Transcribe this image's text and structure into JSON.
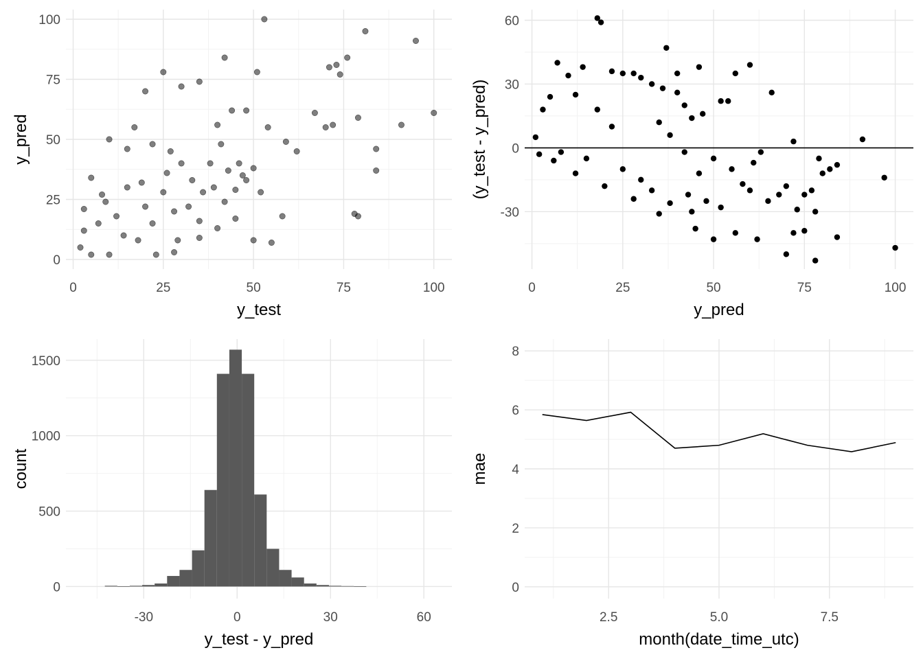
{
  "chart_data": [
    {
      "type": "scatter",
      "xlabel": "y_test",
      "ylabel": "y_pred",
      "xlim": [
        -2,
        105
      ],
      "ylim": [
        -4,
        104
      ],
      "xticks": [
        0,
        25,
        50,
        75,
        100
      ],
      "xtick_labels": [
        "0",
        "25",
        "50",
        "75",
        "100"
      ],
      "yticks": [
        0,
        25,
        50,
        75,
        100
      ],
      "ytick_labels": [
        "0",
        "25",
        "50",
        "75",
        "100"
      ],
      "grid": true,
      "point_color": "#000000",
      "point_opacity": 0.5,
      "points": [
        [
          53,
          100
        ],
        [
          95,
          91
        ],
        [
          81,
          95
        ],
        [
          76,
          84
        ],
        [
          42,
          84
        ],
        [
          73,
          81
        ],
        [
          71,
          80
        ],
        [
          51,
          78
        ],
        [
          25,
          78
        ],
        [
          74,
          77
        ],
        [
          79,
          59
        ],
        [
          91,
          56
        ],
        [
          100,
          61
        ],
        [
          84,
          46
        ],
        [
          84,
          37
        ],
        [
          78,
          19
        ],
        [
          79,
          18
        ],
        [
          67,
          61
        ],
        [
          70,
          55
        ],
        [
          72,
          56
        ],
        [
          62,
          45
        ],
        [
          59,
          49
        ],
        [
          54,
          55
        ],
        [
          48,
          62
        ],
        [
          44,
          62
        ],
        [
          40,
          56
        ],
        [
          30,
          72
        ],
        [
          35,
          74
        ],
        [
          20,
          70
        ],
        [
          41,
          48
        ],
        [
          46,
          40
        ],
        [
          38,
          40
        ],
        [
          22,
          48
        ],
        [
          27,
          45
        ],
        [
          15,
          46
        ],
        [
          10,
          50
        ],
        [
          17,
          55
        ],
        [
          5,
          34
        ],
        [
          3,
          21
        ],
        [
          48,
          33
        ],
        [
          47,
          35
        ],
        [
          50,
          38
        ],
        [
          52,
          28
        ],
        [
          58,
          18
        ],
        [
          45,
          17
        ],
        [
          50,
          8
        ],
        [
          55,
          7
        ],
        [
          40,
          13
        ],
        [
          35,
          16
        ],
        [
          29,
          8
        ],
        [
          28,
          3
        ],
        [
          23,
          2
        ],
        [
          10,
          2
        ],
        [
          5,
          2
        ],
        [
          2,
          5
        ],
        [
          3,
          12
        ],
        [
          8,
          27
        ],
        [
          30,
          40
        ],
        [
          26,
          36
        ],
        [
          33,
          33
        ],
        [
          36,
          28
        ],
        [
          32,
          22
        ],
        [
          39,
          30
        ],
        [
          43,
          37
        ],
        [
          20,
          22
        ],
        [
          19,
          32
        ],
        [
          14,
          10
        ],
        [
          12,
          18
        ],
        [
          25,
          28
        ],
        [
          22,
          15
        ],
        [
          18,
          8
        ],
        [
          7,
          15
        ],
        [
          9,
          24
        ],
        [
          15,
          30
        ],
        [
          28,
          20
        ],
        [
          35,
          9
        ],
        [
          42,
          24
        ],
        [
          45,
          29
        ]
      ]
    },
    {
      "type": "scatter",
      "xlabel": "y_pred",
      "ylabel": "(y_test - y_pred)",
      "xlim": [
        -2,
        105
      ],
      "ylim": [
        -57,
        65
      ],
      "xticks": [
        0,
        25,
        50,
        75,
        100
      ],
      "xtick_labels": [
        "0",
        "25",
        "50",
        "75",
        "100"
      ],
      "yticks": [
        -30,
        0,
        30,
        60
      ],
      "ytick_labels": [
        "-30",
        "0",
        "30",
        "60"
      ],
      "grid": true,
      "hline": 0,
      "point_color": "#000000",
      "points": [
        [
          18,
          61
        ],
        [
          19,
          59
        ],
        [
          37,
          47
        ],
        [
          60,
          39
        ],
        [
          46,
          38
        ],
        [
          7,
          40
        ],
        [
          25,
          35
        ],
        [
          14,
          38
        ],
        [
          56,
          35
        ],
        [
          40,
          35
        ],
        [
          66,
          26
        ],
        [
          91,
          4
        ],
        [
          72,
          3
        ],
        [
          97,
          -14
        ],
        [
          100,
          -47
        ],
        [
          78,
          -53
        ],
        [
          70,
          -50
        ],
        [
          84,
          -42
        ],
        [
          80,
          -12
        ],
        [
          82,
          -10
        ],
        [
          84,
          -8
        ],
        [
          79,
          -5
        ],
        [
          77,
          -20
        ],
        [
          75,
          -22
        ],
        [
          73,
          -29
        ],
        [
          78,
          -30
        ],
        [
          72,
          -40
        ],
        [
          75,
          -39
        ],
        [
          62,
          -43
        ],
        [
          56,
          -40
        ],
        [
          50,
          -43
        ],
        [
          45,
          -38
        ],
        [
          48,
          -25
        ],
        [
          43,
          -22
        ],
        [
          35,
          -31
        ],
        [
          60,
          -20
        ],
        [
          52,
          -28
        ],
        [
          58,
          -17
        ],
        [
          63,
          -2
        ],
        [
          61,
          -7
        ],
        [
          65,
          -25
        ],
        [
          68,
          -22
        ],
        [
          70,
          -18
        ],
        [
          55,
          -10
        ],
        [
          50,
          -5
        ],
        [
          52,
          22
        ],
        [
          54,
          22
        ],
        [
          47,
          16
        ],
        [
          44,
          14
        ],
        [
          42,
          20
        ],
        [
          40,
          26
        ],
        [
          36,
          28
        ],
        [
          33,
          30
        ],
        [
          30,
          33
        ],
        [
          28,
          35
        ],
        [
          22,
          36
        ],
        [
          10,
          34
        ],
        [
          5,
          24
        ],
        [
          3,
          18
        ],
        [
          1,
          5
        ],
        [
          2,
          -3
        ],
        [
          6,
          -6
        ],
        [
          12,
          -12
        ],
        [
          20,
          -18
        ],
        [
          28,
          -24
        ],
        [
          33,
          -20
        ],
        [
          38,
          -26
        ],
        [
          44,
          -30
        ],
        [
          30,
          -15
        ],
        [
          25,
          -10
        ],
        [
          15,
          -5
        ],
        [
          8,
          -2
        ],
        [
          22,
          10
        ],
        [
          18,
          18
        ],
        [
          12,
          25
        ],
        [
          35,
          12
        ],
        [
          38,
          6
        ],
        [
          42,
          -2
        ],
        [
          46,
          -12
        ]
      ]
    },
    {
      "type": "bar",
      "xlabel": "y_test - y_pred",
      "ylabel": "count",
      "xlim": [
        -55,
        69
      ],
      "ylim": [
        -80,
        1640
      ],
      "xticks": [
        -30,
        0,
        30,
        60
      ],
      "xtick_labels": [
        "-30",
        "0",
        "30",
        "60"
      ],
      "yticks": [
        0,
        500,
        1000,
        1500
      ],
      "ytick_labels": [
        "0",
        "500",
        "1000",
        "1500"
      ],
      "grid": true,
      "bar_color": "#595959",
      "bins": [
        {
          "x0": -42.5,
          "x1": -38.5,
          "count": 5
        },
        {
          "x0": -38.5,
          "x1": -34.5,
          "count": 2
        },
        {
          "x0": -34.5,
          "x1": -30.5,
          "count": 5
        },
        {
          "x0": -30.5,
          "x1": -26.5,
          "count": 10
        },
        {
          "x0": -26.5,
          "x1": -22.5,
          "count": 20
        },
        {
          "x0": -22.5,
          "x1": -18.5,
          "count": 70
        },
        {
          "x0": -18.5,
          "x1": -14.5,
          "count": 110
        },
        {
          "x0": -14.5,
          "x1": -10.5,
          "count": 240
        },
        {
          "x0": -10.5,
          "x1": -6.5,
          "count": 640
        },
        {
          "x0": -6.5,
          "x1": -2.5,
          "count": 1410
        },
        {
          "x0": -2.5,
          "x1": 1.5,
          "count": 1570
        },
        {
          "x0": 1.5,
          "x1": 5.5,
          "count": 1410
        },
        {
          "x0": 5.5,
          "x1": 9.5,
          "count": 610
        },
        {
          "x0": 9.5,
          "x1": 13.5,
          "count": 250
        },
        {
          "x0": 13.5,
          "x1": 17.5,
          "count": 110
        },
        {
          "x0": 17.5,
          "x1": 21.5,
          "count": 60
        },
        {
          "x0": 21.5,
          "x1": 25.5,
          "count": 20
        },
        {
          "x0": 25.5,
          "x1": 29.5,
          "count": 10
        },
        {
          "x0": 29.5,
          "x1": 33.5,
          "count": 5
        },
        {
          "x0": 33.5,
          "x1": 37.5,
          "count": 3
        },
        {
          "x0": 37.5,
          "x1": 41.5,
          "count": 2
        }
      ]
    },
    {
      "type": "line",
      "xlabel": "month(date_time_utc)",
      "ylabel": "mae",
      "xlim": [
        0.6,
        9.4
      ],
      "ylim": [
        -0.4,
        8.4
      ],
      "xticks": [
        2.5,
        5.0,
        7.5
      ],
      "xtick_labels": [
        "2.5",
        "5.0",
        "7.5"
      ],
      "yticks": [
        0,
        2,
        4,
        6,
        8
      ],
      "ytick_labels": [
        "0",
        "2",
        "4",
        "6",
        "8"
      ],
      "grid": true,
      "line_color": "#000000",
      "x": [
        1,
        2,
        3,
        4,
        5,
        6,
        7,
        8,
        9
      ],
      "y": [
        5.84,
        5.64,
        5.92,
        4.7,
        4.8,
        5.19,
        4.8,
        4.58,
        4.89
      ]
    }
  ]
}
